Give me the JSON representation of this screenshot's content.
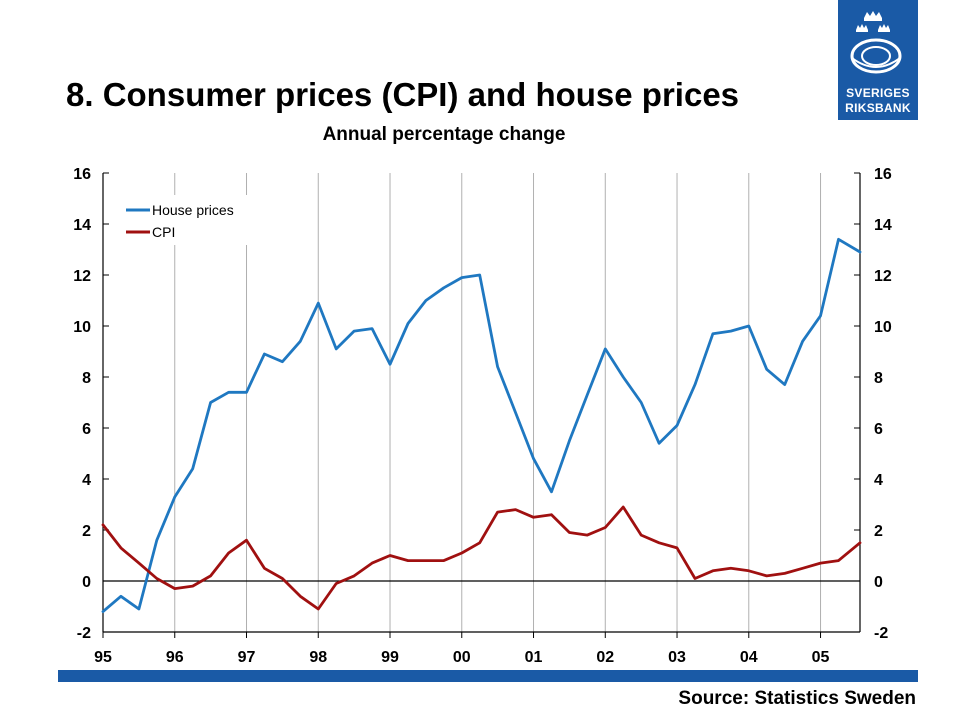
{
  "header": {
    "title": "8. Consumer prices (CPI) and house prices",
    "subtitle": "Annual percentage change"
  },
  "logo": {
    "line1": "SVERIGES",
    "line2": "RIKSBANK",
    "color": "#1a5aa6"
  },
  "footer": {
    "source": "Source: Statistics Sweden",
    "bar_color": "#1a5aa6"
  },
  "chart_data": {
    "type": "line",
    "title": "8. Consumer prices (CPI) and house prices",
    "subtitle": "Annual percentage change",
    "xlabel": "",
    "ylabel": "",
    "x_tick_labels": [
      "95",
      "96",
      "97",
      "98",
      "99",
      "00",
      "01",
      "02",
      "03",
      "04",
      "05"
    ],
    "xlim": [
      1995.0,
      2005.55
    ],
    "ylim": [
      -2,
      16
    ],
    "y_ticks": [
      -2,
      0,
      2,
      4,
      6,
      8,
      10,
      12,
      14,
      16
    ],
    "y_tick_labels": [
      "-2",
      "0",
      "2",
      "4",
      "6",
      "8",
      "10",
      "12",
      "14",
      "16"
    ],
    "grid": "vertical",
    "legend": "top-left",
    "x": [
      1995.0,
      1995.25,
      1995.5,
      1995.75,
      1996.0,
      1996.25,
      1996.5,
      1996.75,
      1997.0,
      1997.25,
      1997.5,
      1997.75,
      1998.0,
      1998.25,
      1998.5,
      1998.75,
      1999.0,
      1999.25,
      1999.5,
      1999.75,
      2000.0,
      2000.25,
      2000.5,
      2000.75,
      2001.0,
      2001.25,
      2001.5,
      2001.75,
      2002.0,
      2002.25,
      2002.5,
      2002.75,
      2003.0,
      2003.25,
      2003.5,
      2003.75,
      2004.0,
      2004.25,
      2004.5,
      2004.75,
      2005.0,
      2005.25,
      2005.55
    ],
    "series": [
      {
        "name": "House prices",
        "color": "#1f78c1",
        "values": [
          -1.2,
          -0.6,
          -1.1,
          1.6,
          3.3,
          4.4,
          7.0,
          7.4,
          7.4,
          8.9,
          8.6,
          9.4,
          10.9,
          9.1,
          9.8,
          9.9,
          8.5,
          10.1,
          11.0,
          11.5,
          11.9,
          12.0,
          8.4,
          6.6,
          4.8,
          3.5,
          5.5,
          7.3,
          9.1,
          8.0,
          7.0,
          5.4,
          6.1,
          7.7,
          9.7,
          9.8,
          10.0,
          8.3,
          7.7,
          9.4,
          10.4,
          13.4,
          12.9
        ]
      },
      {
        "name": "CPI",
        "color": "#a01010",
        "values": [
          2.2,
          1.3,
          0.7,
          0.1,
          -0.3,
          -0.2,
          0.2,
          1.1,
          1.6,
          0.5,
          0.1,
          -0.6,
          -1.1,
          -0.1,
          0.2,
          0.7,
          1.0,
          0.8,
          0.8,
          0.8,
          1.1,
          1.5,
          2.7,
          2.8,
          2.5,
          2.6,
          1.9,
          1.8,
          2.1,
          2.9,
          1.8,
          1.5,
          1.3,
          0.1,
          0.4,
          0.5,
          0.4,
          0.2,
          0.3,
          0.5,
          0.7,
          0.8,
          1.5
        ]
      }
    ]
  }
}
